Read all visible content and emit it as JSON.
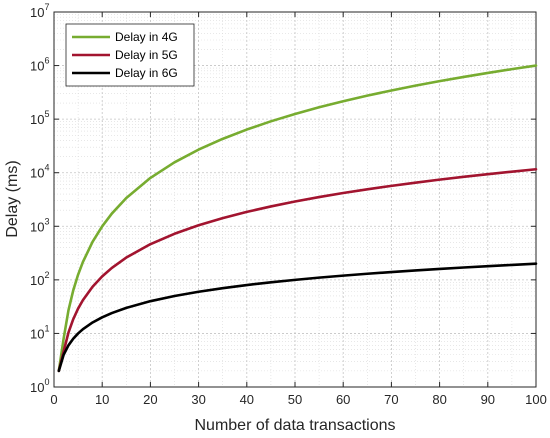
{
  "chart_data": {
    "type": "line",
    "xlabel": "Number of data transactions",
    "ylabel": "Delay (ms)",
    "xlim": [
      0,
      100
    ],
    "ylim_log10_exponents": [
      0,
      7
    ],
    "y_scale": "log",
    "grid": true,
    "minor_grid": true,
    "legend_position": "top-left",
    "x_ticks": [
      "0",
      "10",
      "20",
      "30",
      "40",
      "50",
      "60",
      "70",
      "80",
      "90",
      "100"
    ],
    "y_ticks": [
      {
        "base": "10",
        "exp": "0"
      },
      {
        "base": "10",
        "exp": "1"
      },
      {
        "base": "10",
        "exp": "2"
      },
      {
        "base": "10",
        "exp": "3"
      },
      {
        "base": "10",
        "exp": "4"
      },
      {
        "base": "10",
        "exp": "5"
      },
      {
        "base": "10",
        "exp": "6"
      },
      {
        "base": "10",
        "exp": "7"
      }
    ],
    "x": [
      1,
      2,
      3,
      4,
      5,
      6,
      8,
      10,
      12,
      15,
      20,
      25,
      30,
      35,
      40,
      45,
      50,
      55,
      60,
      65,
      70,
      75,
      80,
      85,
      90,
      95,
      100
    ],
    "series": [
      {
        "name": "Delay in 4G",
        "color": "#77ac30",
        "values": [
          2,
          8,
          27,
          64,
          125,
          216,
          512,
          1000,
          1728,
          3375,
          8000,
          15625,
          27000,
          42875,
          64000,
          91125,
          125000,
          166375,
          216000,
          274625,
          343000,
          421875,
          512000,
          614125,
          729000,
          857375,
          1000000
        ]
      },
      {
        "name": "Delay in 5G",
        "color": "#a2142f",
        "values": [
          2,
          4.6,
          10.4,
          18.5,
          29.1,
          41.8,
          74.3,
          116,
          167,
          261,
          464,
          725,
          1044,
          1421,
          1856,
          2349,
          2900,
          3509,
          4176,
          4901,
          5684,
          6525,
          7424,
          8381,
          9396,
          10469,
          11600
        ]
      },
      {
        "name": "Delay in 6G",
        "color": "#000000",
        "values": [
          2,
          4,
          6,
          8,
          10,
          12,
          16,
          20,
          24,
          30,
          40,
          50,
          60,
          70,
          80,
          90,
          100,
          110,
          120,
          130,
          140,
          150,
          160,
          170,
          180,
          190,
          200
        ]
      }
    ]
  }
}
